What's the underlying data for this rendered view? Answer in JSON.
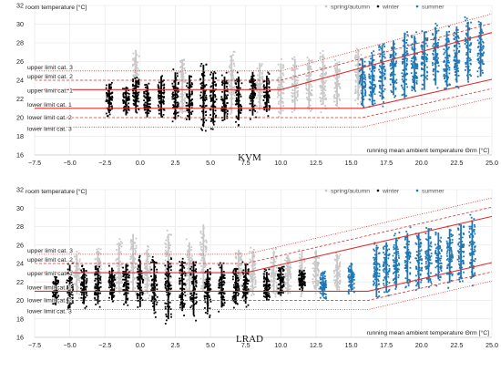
{
  "chart_data": [
    {
      "type": "scatter",
      "caption": "KVM",
      "ylabel": "room temperature [°C]",
      "xlabel": "running mean ambient temperature Θrm [°C]",
      "xlim": [
        -7.5,
        25.0
      ],
      "ylim": [
        16,
        32
      ],
      "xticks": [
        "−7.5",
        "−5.0",
        "−2.5",
        "0.0",
        "2.5",
        "5.0",
        "7.5",
        "10.0",
        "12.5",
        "15.0",
        "17.5",
        "20.0",
        "22.5",
        "25.0"
      ],
      "yticks": [
        "16",
        "18",
        "20",
        "22",
        "24",
        "26",
        "28",
        "30",
        "32"
      ],
      "grid": true,
      "legend_position": "top-right",
      "series": [
        {
          "name": "spring/autumn",
          "color": "#c8c8c8",
          "clusters": [
            [
              -0.3,
              21,
              27.8
            ],
            [
              3,
              19.5,
              27
            ],
            [
              6.5,
              19.5,
              27.5
            ],
            [
              8.5,
              20,
              26.5
            ],
            [
              10,
              19.5,
              26.5
            ],
            [
              11,
              20,
              27
            ],
            [
              12,
              20,
              27
            ],
            [
              13,
              20.5,
              27.5
            ],
            [
              14,
              20.5,
              26.5
            ],
            [
              15.5,
              21,
              28
            ]
          ]
        },
        {
          "name": "winter",
          "color": "#000000",
          "clusters": [
            [
              -2.2,
              20,
              24
            ],
            [
              -1,
              19.8,
              23.5
            ],
            [
              -0.3,
              20,
              24.5
            ],
            [
              0.5,
              19.5,
              24
            ],
            [
              1.5,
              19.5,
              25
            ],
            [
              2.5,
              19,
              25.5
            ],
            [
              3.5,
              19,
              25
            ],
            [
              4.5,
              18,
              26.5
            ],
            [
              5.2,
              18.5,
              25.5
            ],
            [
              6,
              19,
              25
            ],
            [
              7,
              19,
              25
            ],
            [
              8,
              19.5,
              25.5
            ],
            [
              9,
              20,
              25
            ]
          ]
        },
        {
          "name": "summer",
          "color": "#1f77b4",
          "clusters": [
            [
              15.8,
              20.5,
              27
            ],
            [
              16.5,
              20.5,
              27.5
            ],
            [
              17.2,
              21,
              28.5
            ],
            [
              18,
              21.5,
              29
            ],
            [
              18.8,
              21,
              30
            ],
            [
              19.5,
              22,
              29.5
            ],
            [
              20.2,
              22,
              30
            ],
            [
              21,
              22.5,
              30.5
            ],
            [
              21.8,
              22.5,
              30
            ],
            [
              22.5,
              23,
              30.5
            ],
            [
              23.3,
              23,
              31
            ],
            [
              24.2,
              23.5,
              31
            ]
          ]
        }
      ],
      "limits": [
        {
          "label": "upper limit cat. 1",
          "style": "solid",
          "y_const": 23,
          "y_a": 28,
          "y_b": 29.1
        },
        {
          "label": "upper limit cat. 2",
          "style": "dashed",
          "y_const": 24,
          "y_a": 29,
          "y_b": 30.1
        },
        {
          "label": "upper limit cat. 3",
          "style": "dotted",
          "y_const": 25,
          "y_a": 30,
          "y_b": 31.1
        },
        {
          "label": "lower limit cat. 1",
          "style": "solid",
          "y_const": 21,
          "y_a": 21,
          "y_b": 24.1
        },
        {
          "label": "lower limit cat. 2",
          "style": "dashed",
          "y_const": 20,
          "y_a": 20,
          "y_b": 23.1
        },
        {
          "label": "lower limit cat. 3",
          "style": "dotted",
          "y_const": 19,
          "y_a": 19,
          "y_b": 22.1
        }
      ],
      "limit_breaks_x": [
        10,
        15.8,
        25
      ],
      "limit_color": "#e03030"
    },
    {
      "type": "scatter",
      "caption": "LRAD",
      "ylabel": "room temperature [°C]",
      "xlabel": "running mean ambient temperature Θrm [°C]",
      "xlim": [
        -7.5,
        25.0
      ],
      "ylim": [
        16,
        32
      ],
      "xticks": [
        "−7.5",
        "−5.0",
        "−2.5",
        "0.0",
        "2.5",
        "5.0",
        "7.5",
        "10.0",
        "12.5",
        "15.0",
        "17.5",
        "20.0",
        "22.5",
        "25.0"
      ],
      "yticks": [
        "16",
        "18",
        "20",
        "22",
        "24",
        "26",
        "28",
        "30",
        "32"
      ],
      "grid": true,
      "legend_position": "top-right",
      "series": [
        {
          "name": "spring/autumn",
          "color": "#c8c8c8",
          "clusters": [
            [
              -4.5,
              20,
              25.5
            ],
            [
              -3,
              20,
              26
            ],
            [
              -1.5,
              20,
              27
            ],
            [
              -0.5,
              20,
              28
            ],
            [
              0.5,
              20,
              26
            ],
            [
              2,
              20,
              28
            ],
            [
              3.5,
              20,
              27
            ],
            [
              4.5,
              20,
              29
            ],
            [
              7,
              21,
              26
            ],
            [
              8,
              20,
              26
            ],
            [
              9.5,
              20,
              26
            ],
            [
              10.5,
              20,
              25.5
            ],
            [
              11.5,
              20,
              26
            ],
            [
              12.5,
              20.5,
              26
            ],
            [
              14,
              20.5,
              25.5
            ]
          ]
        },
        {
          "name": "winter",
          "color": "#000000",
          "clusters": [
            [
              -6,
              19,
              23
            ],
            [
              -5,
              18,
              24.5
            ],
            [
              -4,
              19,
              24
            ],
            [
              -3,
              19,
              24
            ],
            [
              -2,
              19.5,
              24
            ],
            [
              -1,
              19,
              24.5
            ],
            [
              0,
              18.5,
              25
            ],
            [
              1,
              18,
              25
            ],
            [
              2,
              17,
              25
            ],
            [
              3,
              18,
              25
            ],
            [
              3.8,
              17.5,
              25
            ],
            [
              4.8,
              18,
              24
            ],
            [
              5.8,
              18.5,
              24.5
            ],
            [
              6.8,
              19,
              24
            ],
            [
              7.5,
              19,
              24.5
            ],
            [
              9,
              19.5,
              23.5
            ],
            [
              10,
              20,
              24
            ],
            [
              11.5,
              21,
              23.5
            ]
          ]
        },
        {
          "name": "summer",
          "color": "#1f77b4",
          "clusters": [
            [
              13,
              20,
              23.5
            ],
            [
              15,
              20.5,
              24.5
            ],
            [
              16.8,
              19.5,
              26.5
            ],
            [
              17.5,
              20,
              27
            ],
            [
              18.2,
              20.5,
              27.5
            ],
            [
              19,
              21,
              28
            ],
            [
              19.8,
              20.5,
              28
            ],
            [
              20.5,
              21,
              28.5
            ],
            [
              21.2,
              21.5,
              28
            ],
            [
              22,
              21,
              28.5
            ],
            [
              22.8,
              21.5,
              29
            ],
            [
              23.6,
              21.5,
              29.5
            ]
          ]
        }
      ],
      "limits": [
        {
          "label": "upper limit cat. 1",
          "style": "solid",
          "y_const": 23,
          "y_a": 26.7,
          "y_b": 29.1
        },
        {
          "label": "upper limit cat. 2",
          "style": "dashed",
          "y_const": 24,
          "y_a": 27.7,
          "y_b": 30.1
        },
        {
          "label": "upper limit cat. 3",
          "style": "dotted",
          "y_const": 25,
          "y_a": 28.7,
          "y_b": 31.1
        },
        {
          "label": "lower limit cat. 1",
          "style": "solid",
          "y_const": 21,
          "y_a": 21,
          "y_b": 24.1
        },
        {
          "label": "lower limit cat. 2",
          "style": "dashed",
          "y_const": 20,
          "y_a": 20,
          "y_b": 23.1
        },
        {
          "label": "lower limit cat. 3",
          "style": "dotted",
          "y_const": 19,
          "y_a": 19,
          "y_b": 22.1
        }
      ],
      "limit_breaks_x": [
        7.5,
        16.2,
        25
      ],
      "limit_color": "#e03030"
    }
  ]
}
